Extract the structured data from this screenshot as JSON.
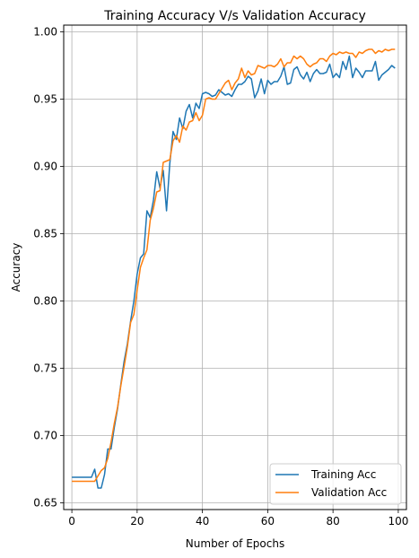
{
  "chart_data": {
    "type": "line",
    "title": "Training Accuracy V/s Validation Accuracy",
    "xlabel": "Number of Epochs",
    "ylabel": "Accuracy",
    "xlim": [
      -2.5,
      102.5
    ],
    "ylim": [
      0.645,
      1.005
    ],
    "xticks": [
      0,
      20,
      40,
      60,
      80,
      100
    ],
    "yticks": [
      0.65,
      0.7,
      0.75,
      0.8,
      0.85,
      0.9,
      0.95,
      1.0
    ],
    "ytick_labels": [
      "0.65",
      "0.70",
      "0.75",
      "0.80",
      "0.85",
      "0.90",
      "0.95",
      "1.00"
    ],
    "grid": true,
    "legend_position": "lower-right",
    "series": [
      {
        "name": "Training Acc",
        "color": "#1f77b4",
        "x_start": 0,
        "values": [
          0.669,
          0.669,
          0.669,
          0.669,
          0.669,
          0.669,
          0.669,
          0.675,
          0.661,
          0.661,
          0.671,
          0.69,
          0.69,
          0.706,
          0.72,
          0.738,
          0.755,
          0.768,
          0.785,
          0.8,
          0.82,
          0.832,
          0.835,
          0.867,
          0.862,
          0.875,
          0.896,
          0.884,
          0.897,
          0.867,
          0.902,
          0.926,
          0.92,
          0.936,
          0.928,
          0.941,
          0.946,
          0.936,
          0.947,
          0.943,
          0.954,
          0.955,
          0.954,
          0.952,
          0.953,
          0.957,
          0.955,
          0.953,
          0.954,
          0.952,
          0.957,
          0.961,
          0.961,
          0.963,
          0.967,
          0.965,
          0.951,
          0.956,
          0.965,
          0.954,
          0.964,
          0.961,
          0.963,
          0.963,
          0.967,
          0.974,
          0.961,
          0.962,
          0.972,
          0.974,
          0.968,
          0.965,
          0.97,
          0.963,
          0.969,
          0.972,
          0.969,
          0.969,
          0.97,
          0.976,
          0.966,
          0.969,
          0.966,
          0.978,
          0.972,
          0.982,
          0.966,
          0.973,
          0.97,
          0.966,
          0.971,
          0.971,
          0.971,
          0.978,
          0.964,
          0.968,
          0.97,
          0.972,
          0.975,
          0.973
        ]
      },
      {
        "name": "Validation Acc",
        "color": "#ff7f0e",
        "x_start": 0,
        "values": [
          0.666,
          0.666,
          0.666,
          0.666,
          0.666,
          0.666,
          0.666,
          0.666,
          0.67,
          0.674,
          0.676,
          0.683,
          0.695,
          0.709,
          0.721,
          0.737,
          0.751,
          0.766,
          0.784,
          0.79,
          0.808,
          0.825,
          0.832,
          0.838,
          0.86,
          0.869,
          0.881,
          0.882,
          0.903,
          0.904,
          0.905,
          0.919,
          0.923,
          0.918,
          0.93,
          0.927,
          0.933,
          0.934,
          0.94,
          0.934,
          0.938,
          0.95,
          0.951,
          0.95,
          0.95,
          0.954,
          0.958,
          0.962,
          0.964,
          0.957,
          0.962,
          0.965,
          0.973,
          0.966,
          0.971,
          0.968,
          0.969,
          0.975,
          0.974,
          0.973,
          0.975,
          0.975,
          0.974,
          0.976,
          0.98,
          0.974,
          0.977,
          0.977,
          0.982,
          0.98,
          0.982,
          0.98,
          0.976,
          0.974,
          0.976,
          0.977,
          0.98,
          0.98,
          0.978,
          0.982,
          0.984,
          0.983,
          0.985,
          0.984,
          0.985,
          0.984,
          0.984,
          0.981,
          0.985,
          0.984,
          0.986,
          0.987,
          0.987,
          0.984,
          0.986,
          0.985,
          0.987,
          0.986,
          0.987,
          0.987
        ]
      }
    ]
  }
}
